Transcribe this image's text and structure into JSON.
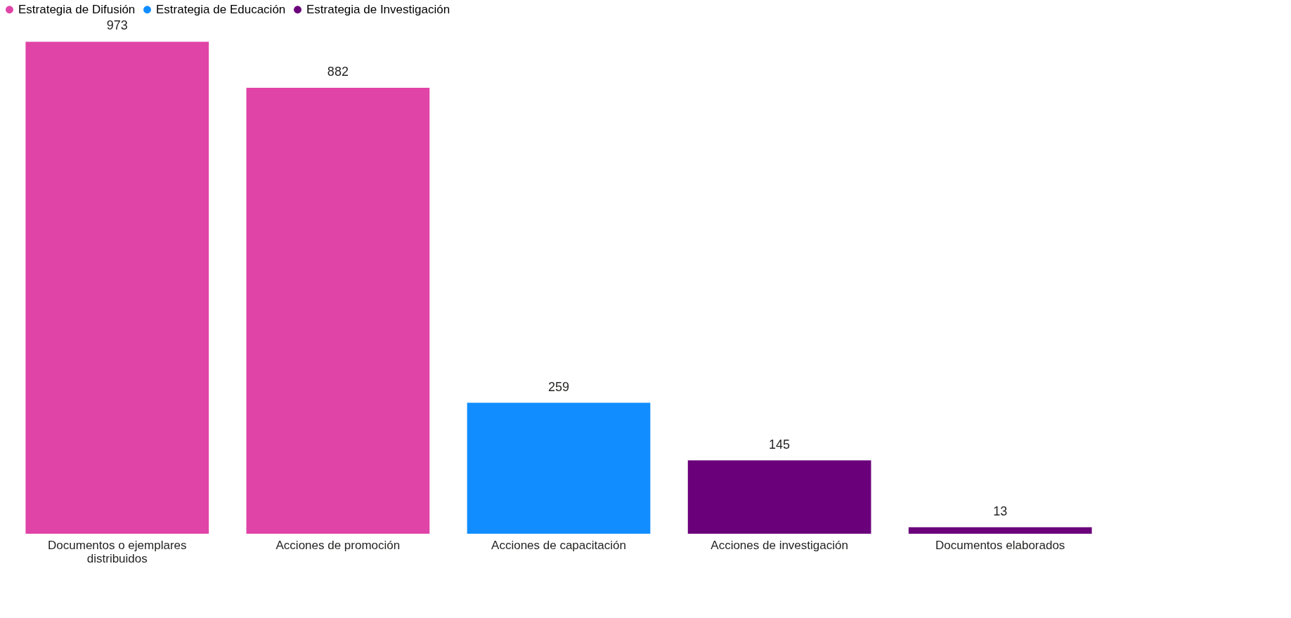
{
  "chart_data": {
    "type": "bar",
    "categories": [
      "Documentos o ejemplares distribuidos",
      "Acciones de promoción",
      "Acciones de capacitación",
      "Acciones de investigación",
      "Documentos elaborados"
    ],
    "series": [
      {
        "name": "Estrategia de Difusión",
        "color": "#e044a7",
        "values": [
          973,
          882,
          null,
          null,
          null
        ]
      },
      {
        "name": "Estrategia de Educación",
        "color": "#118dff",
        "values": [
          null,
          null,
          259,
          null,
          null
        ]
      },
      {
        "name": "Estrategia de Investigación",
        "color": "#6b007b",
        "values": [
          null,
          null,
          null,
          145,
          13
        ]
      }
    ],
    "data_labels": true,
    "legend": "top",
    "grid": false
  }
}
